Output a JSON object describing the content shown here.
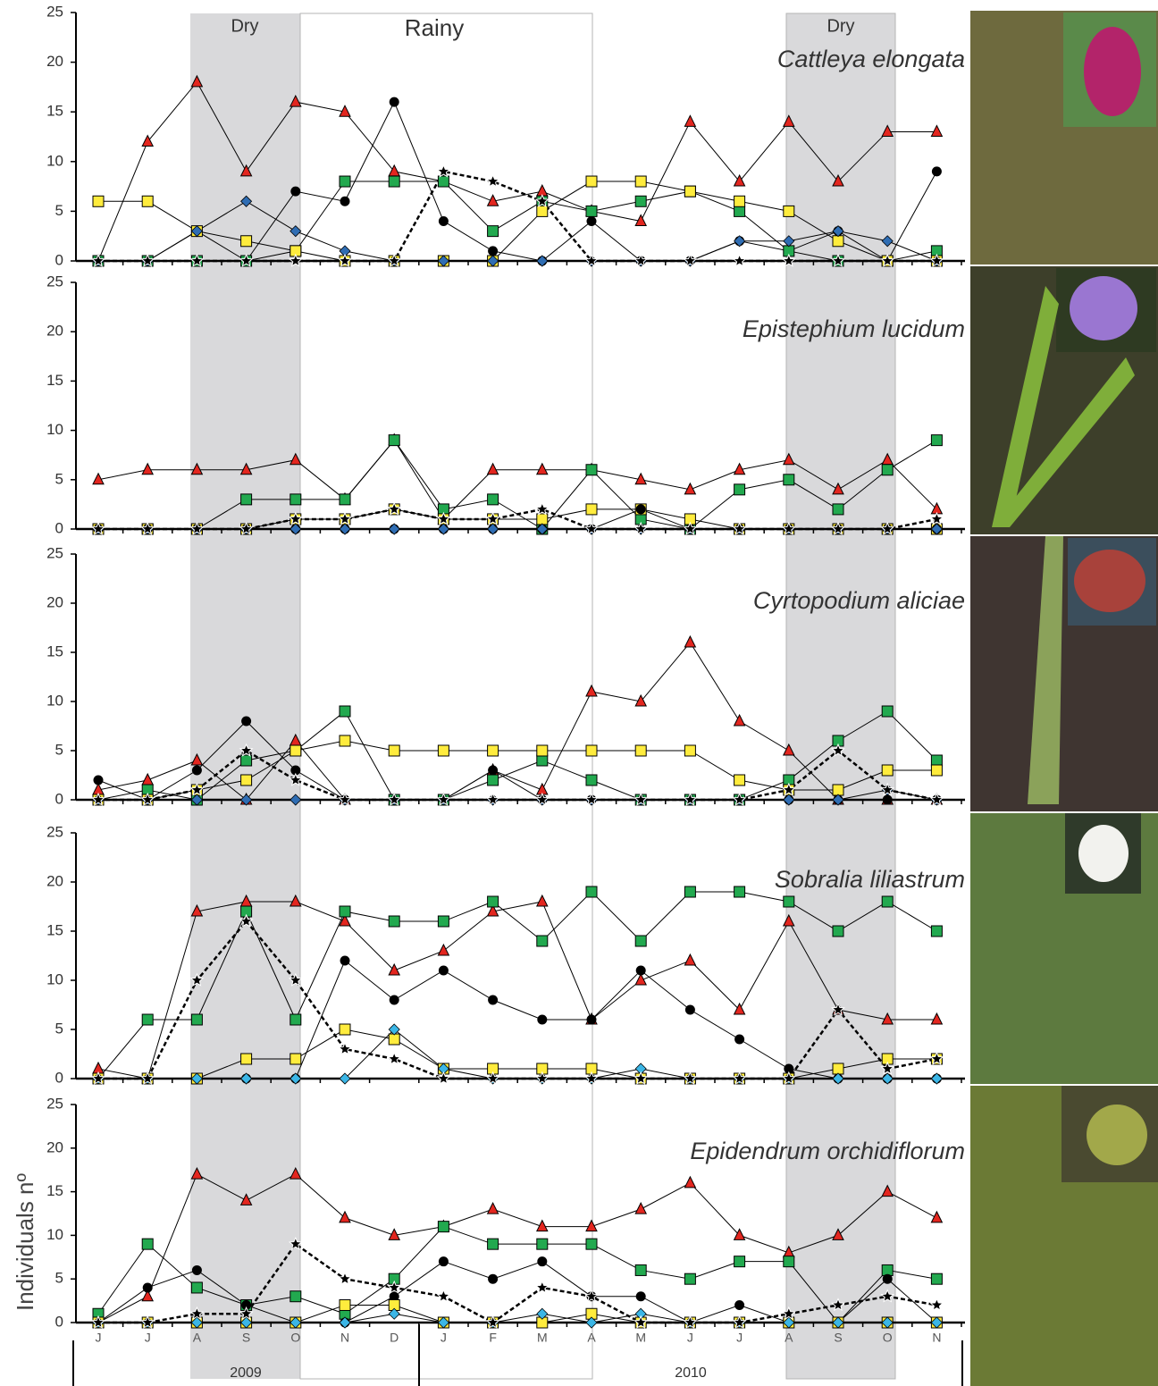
{
  "y_axis_label": "Individuals nº",
  "season_labels": [
    "Dry",
    "Rainy",
    "Dry"
  ],
  "years": [
    "2009",
    "2010"
  ],
  "chart_data": [
    {
      "type": "line",
      "title": "Cattleya elongata",
      "ylim": [
        0,
        25
      ],
      "yticks": [
        0,
        5,
        10,
        15,
        20,
        25
      ],
      "series": [
        {
          "color": "#e3261f",
          "marker": "triangle",
          "values": [
            0,
            12,
            18,
            9,
            16,
            15,
            9,
            8,
            6,
            7,
            5,
            4,
            14,
            8,
            14,
            8,
            13,
            13
          ]
        },
        {
          "color": "#000000",
          "marker": "circle",
          "values": [
            0,
            0,
            3,
            0,
            7,
            6,
            16,
            4,
            1,
            0,
            4,
            0,
            0,
            2,
            1,
            3,
            0,
            9
          ]
        },
        {
          "color": "#22a94f",
          "marker": "square",
          "values": [
            0,
            0,
            0,
            0,
            1,
            8,
            8,
            8,
            3,
            6,
            5,
            6,
            7,
            5,
            1,
            0,
            0,
            1
          ]
        },
        {
          "color": "#ffec3d",
          "marker": "square",
          "values": [
            6,
            6,
            3,
            2,
            1,
            0,
            0,
            0,
            0,
            5,
            8,
            8,
            7,
            6,
            5,
            2,
            0,
            0
          ]
        },
        {
          "color": "#2f6db3",
          "marker": "diamond",
          "values": [
            0,
            0,
            3,
            6,
            3,
            1,
            0,
            0,
            0,
            0,
            0,
            0,
            0,
            2,
            2,
            3,
            2,
            0
          ]
        },
        {
          "color": "#000000",
          "marker": "star",
          "dashed": true,
          "values": [
            0,
            0,
            0,
            0,
            0,
            0,
            0,
            9,
            8,
            6,
            0,
            0,
            0,
            0,
            0,
            0,
            0,
            0
          ]
        }
      ]
    },
    {
      "type": "line",
      "title": "Epistephium lucidum",
      "ylim": [
        0,
        25
      ],
      "yticks": [
        0,
        5,
        10,
        15,
        20,
        25
      ],
      "series": [
        {
          "color": "#e3261f",
          "marker": "triangle",
          "values": [
            5,
            6,
            6,
            6,
            7,
            3,
            9,
            1,
            6,
            6,
            6,
            5,
            4,
            6,
            7,
            4,
            7,
            2
          ]
        },
        {
          "color": "#22a94f",
          "marker": "square",
          "values": [
            0,
            0,
            0,
            3,
            3,
            3,
            9,
            2,
            3,
            0,
            6,
            1,
            0,
            4,
            5,
            2,
            6,
            9
          ]
        },
        {
          "color": "#ffec3d",
          "marker": "square",
          "values": [
            0,
            0,
            0,
            0,
            1,
            1,
            2,
            1,
            1,
            1,
            2,
            2,
            1,
            0,
            0,
            0,
            0,
            0
          ]
        },
        {
          "color": "#000000",
          "marker": "circle",
          "values": [
            0,
            0,
            0,
            0,
            0,
            0,
            0,
            0,
            0,
            0,
            0,
            2,
            0,
            0,
            0,
            0,
            0,
            0
          ]
        },
        {
          "color": "#2f6db3",
          "marker": "diamond",
          "values": [
            0,
            0,
            0,
            0,
            0,
            0,
            0,
            0,
            0,
            0,
            0,
            0,
            0,
            0,
            0,
            0,
            0,
            0
          ]
        },
        {
          "color": "#000000",
          "marker": "star",
          "dashed": true,
          "values": [
            0,
            0,
            0,
            0,
            1,
            1,
            2,
            1,
            1,
            2,
            0,
            0,
            0,
            0,
            0,
            0,
            0,
            1
          ]
        }
      ]
    },
    {
      "type": "line",
      "title": "Cyrtopodium aliciae",
      "ylim": [
        0,
        25
      ],
      "yticks": [
        0,
        5,
        10,
        15,
        20,
        25
      ],
      "series": [
        {
          "color": "#e3261f",
          "marker": "triangle",
          "values": [
            1,
            2,
            4,
            0,
            6,
            0,
            0,
            0,
            3,
            1,
            11,
            10,
            16,
            8,
            5,
            0,
            0,
            0
          ]
        },
        {
          "color": "#000000",
          "marker": "circle",
          "values": [
            2,
            0,
            3,
            8,
            3,
            0,
            0,
            0,
            3,
            0,
            0,
            0,
            0,
            0,
            0,
            0,
            0,
            0
          ]
        },
        {
          "color": "#22a94f",
          "marker": "square",
          "values": [
            0,
            1,
            0,
            4,
            5,
            9,
            0,
            0,
            2,
            4,
            2,
            0,
            0,
            0,
            2,
            6,
            9,
            4
          ]
        },
        {
          "color": "#ffec3d",
          "marker": "square",
          "values": [
            0,
            0,
            1,
            2,
            5,
            6,
            5,
            5,
            5,
            5,
            5,
            5,
            5,
            2,
            1,
            1,
            3,
            3
          ]
        },
        {
          "color": "#2f6db3",
          "marker": "diamond",
          "values": [
            0,
            0,
            0,
            0,
            0,
            0,
            0,
            0,
            0,
            0,
            0,
            0,
            0,
            0,
            0,
            0,
            1,
            0
          ]
        },
        {
          "color": "#000000",
          "marker": "star",
          "dashed": true,
          "values": [
            0,
            0,
            1,
            5,
            2,
            0,
            0,
            0,
            0,
            0,
            0,
            0,
            0,
            0,
            1,
            5,
            1,
            0
          ]
        }
      ]
    },
    {
      "type": "line",
      "title": "Sobralia liliastrum",
      "ylim": [
        0,
        25
      ],
      "yticks": [
        0,
        5,
        10,
        15,
        20,
        25
      ],
      "series": [
        {
          "color": "#e3261f",
          "marker": "triangle",
          "values": [
            1,
            0,
            17,
            18,
            18,
            16,
            11,
            13,
            17,
            18,
            6,
            10,
            12,
            7,
            16,
            7,
            6,
            6
          ]
        },
        {
          "color": "#22a94f",
          "marker": "square",
          "values": [
            0,
            6,
            6,
            17,
            6,
            17,
            16,
            16,
            18,
            14,
            19,
            14,
            19,
            19,
            18,
            15,
            18,
            15
          ]
        },
        {
          "color": "#000000",
          "marker": "circle",
          "values": [
            0,
            0,
            0,
            0,
            0,
            12,
            8,
            11,
            8,
            6,
            6,
            11,
            7,
            4,
            1,
            0,
            0,
            0
          ]
        },
        {
          "color": "#ffec3d",
          "marker": "square",
          "values": [
            0,
            0,
            0,
            2,
            2,
            5,
            4,
            1,
            1,
            1,
            1,
            0,
            0,
            0,
            0,
            1,
            2,
            2
          ]
        },
        {
          "color": "#3bb6e6",
          "marker": "diamond",
          "values": [
            0,
            0,
            0,
            0,
            0,
            0,
            5,
            1,
            0,
            0,
            0,
            1,
            0,
            0,
            0,
            0,
            0,
            0
          ]
        },
        {
          "color": "#000000",
          "marker": "star",
          "dashed": true,
          "values": [
            0,
            0,
            10,
            16,
            10,
            3,
            2,
            0,
            0,
            0,
            0,
            0,
            0,
            0,
            0,
            7,
            1,
            2
          ]
        }
      ]
    },
    {
      "type": "line",
      "title": "Epidendrum orchidiflorum",
      "ylim": [
        0,
        25
      ],
      "yticks": [
        0,
        5,
        10,
        15,
        20,
        25
      ],
      "categories": [
        "J",
        "J",
        "A",
        "S",
        "O",
        "N",
        "D",
        "J",
        "F",
        "M",
        "A",
        "M",
        "J",
        "J",
        "A",
        "S",
        "O",
        "N"
      ],
      "series": [
        {
          "color": "#e3261f",
          "marker": "triangle",
          "values": [
            0,
            3,
            17,
            14,
            17,
            12,
            10,
            11,
            13,
            11,
            11,
            13,
            16,
            10,
            8,
            10,
            15,
            12
          ]
        },
        {
          "color": "#22a94f",
          "marker": "square",
          "values": [
            1,
            9,
            4,
            2,
            3,
            1,
            5,
            11,
            9,
            9,
            9,
            6,
            5,
            7,
            7,
            0,
            6,
            5
          ]
        },
        {
          "color": "#000000",
          "marker": "circle",
          "values": [
            0,
            4,
            6,
            2,
            0,
            0,
            3,
            7,
            5,
            7,
            3,
            3,
            0,
            2,
            0,
            0,
            5,
            0
          ]
        },
        {
          "color": "#ffec3d",
          "marker": "square",
          "values": [
            0,
            0,
            0,
            0,
            0,
            2,
            2,
            0,
            0,
            0,
            1,
            0,
            0,
            0,
            0,
            0,
            0,
            0
          ]
        },
        {
          "color": "#3bb6e6",
          "marker": "diamond",
          "values": [
            0,
            0,
            0,
            0,
            0,
            0,
            1,
            0,
            0,
            1,
            0,
            1,
            0,
            0,
            0,
            0,
            0,
            0
          ]
        },
        {
          "color": "#000000",
          "marker": "star",
          "dashed": true,
          "values": [
            0,
            0,
            1,
            1,
            9,
            5,
            4,
            3,
            0,
            4,
            3,
            0,
            0,
            0,
            1,
            2,
            3,
            2
          ]
        }
      ]
    }
  ]
}
